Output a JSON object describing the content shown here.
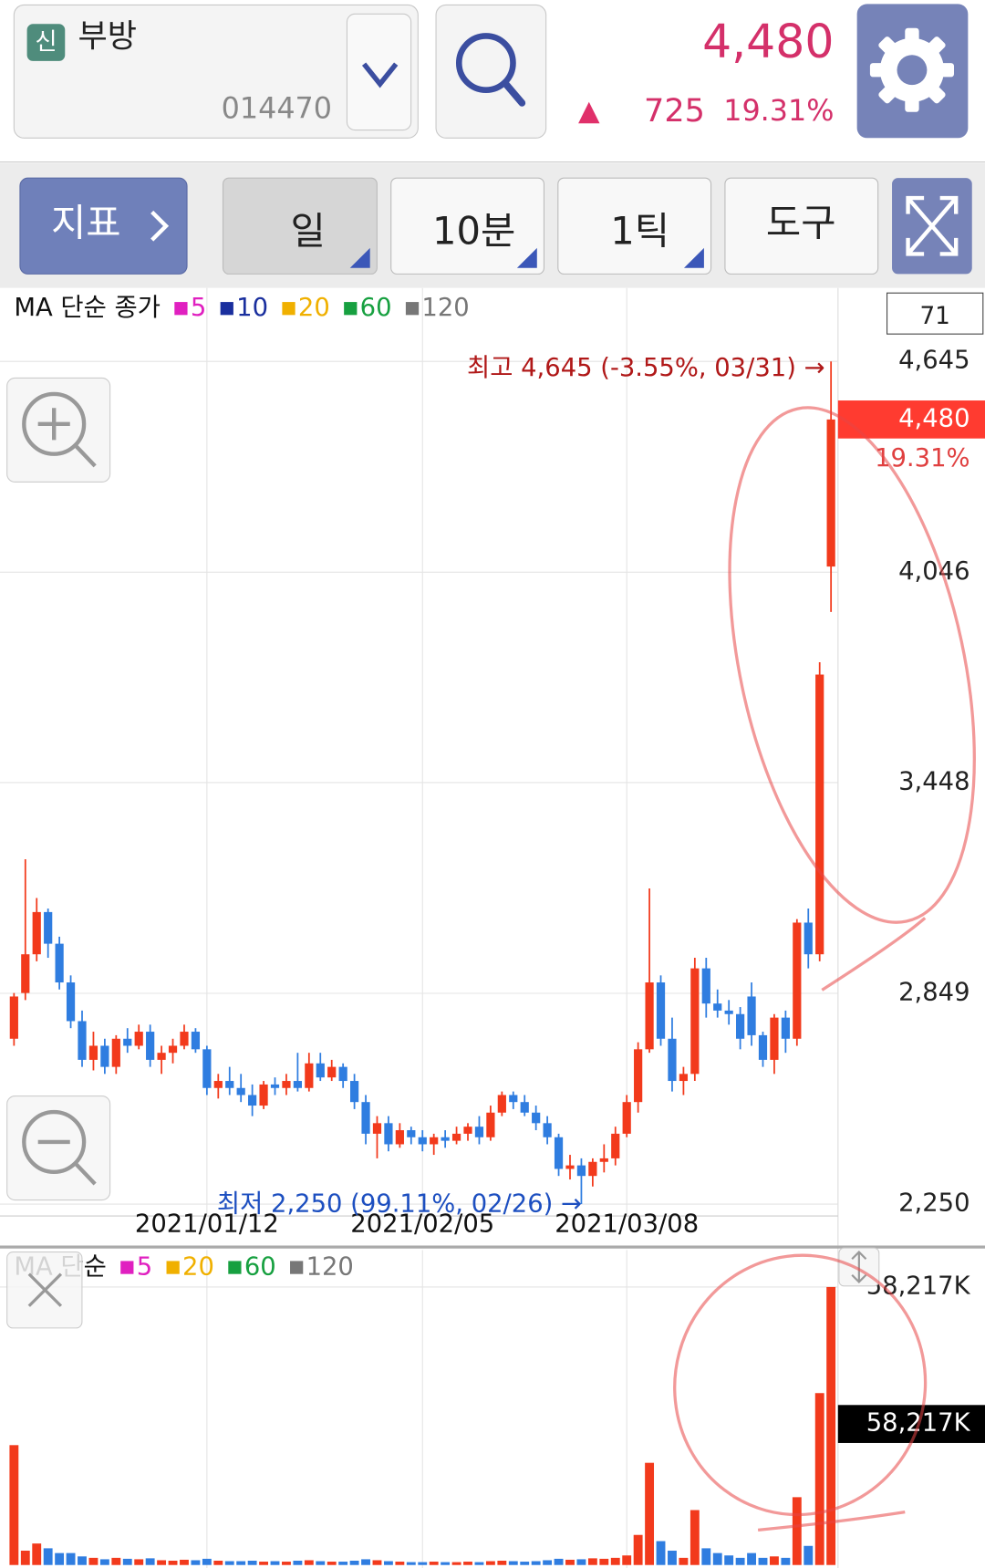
{
  "header": {
    "badge": "신",
    "name": "부방",
    "code": "014470",
    "price": "4,480",
    "arrow": "▲",
    "change": "725",
    "change_rate": "19.31%"
  },
  "toolbar": {
    "indicator": "지표",
    "period_day": "일",
    "period_min": "10분",
    "period_tick": "1틱",
    "tools": "도구"
  },
  "chart_data": [
    {
      "type": "candlestick",
      "count_label": "71",
      "ma_label": "MA 단순 종가",
      "ma_series": [
        {
          "name": "5",
          "color": "#e020c0"
        },
        {
          "name": "10",
          "color": "#1a2f9e"
        },
        {
          "name": "20",
          "color": "#f0b000"
        },
        {
          "name": "60",
          "color": "#17a040"
        },
        {
          "name": "120",
          "color": "#777777"
        }
      ],
      "categories": [
        null,
        null,
        null,
        null,
        null,
        null,
        null,
        null,
        null,
        null,
        null,
        null,
        null,
        null,
        null,
        null,
        null,
        "2021/01/12",
        null,
        null,
        null,
        null,
        null,
        null,
        null,
        null,
        null,
        null,
        null,
        null,
        null,
        null,
        null,
        null,
        null,
        null,
        "2021/02/05",
        null,
        null,
        null,
        null,
        null,
        null,
        null,
        null,
        null,
        null,
        null,
        null,
        null,
        null,
        null,
        null,
        null,
        "2021/03/08",
        null,
        null,
        null,
        null,
        null,
        null,
        null,
        null,
        null,
        null,
        null,
        null,
        null,
        null,
        null,
        null,
        null,
        null
      ],
      "open": [
        2720,
        2850,
        2960,
        3080,
        2990,
        2880,
        2770,
        2660,
        2700,
        2640,
        2720,
        2700,
        2740,
        2660,
        2680,
        2700,
        2740,
        2690,
        2580,
        2600,
        2580,
        2560,
        2530,
        2590,
        2580,
        2600,
        2580,
        2650,
        2610,
        2640,
        2600,
        2540,
        2450,
        2480,
        2420,
        2460,
        2440,
        2420,
        2440,
        2430,
        2450,
        2470,
        2440,
        2510,
        2560,
        2540,
        2510,
        2480,
        2440,
        2350,
        2360,
        2330,
        2370,
        2380,
        2450,
        2540,
        2690,
        2880,
        2720,
        2600,
        2620,
        2920,
        2820,
        2800,
        2790,
        2840,
        2730,
        2660,
        2780,
        2720,
        3050,
        2960,
        4062
      ],
      "high": [
        2850,
        3230,
        3120,
        3090,
        3010,
        2900,
        2800,
        2740,
        2720,
        2730,
        2750,
        2760,
        2760,
        2700,
        2720,
        2760,
        2750,
        2700,
        2620,
        2640,
        2620,
        2590,
        2600,
        2610,
        2620,
        2680,
        2680,
        2680,
        2660,
        2650,
        2620,
        2560,
        2500,
        2500,
        2480,
        2470,
        2460,
        2450,
        2460,
        2470,
        2480,
        2500,
        2530,
        2570,
        2570,
        2560,
        2530,
        2500,
        2450,
        2390,
        2380,
        2380,
        2420,
        2470,
        2560,
        2710,
        3147,
        2900,
        2780,
        2640,
        2950,
        2950,
        2860,
        2830,
        2810,
        2880,
        2740,
        2790,
        2800,
        3060,
        3090,
        3790,
        4645
      ],
      "low": [
        2700,
        2830,
        2940,
        2950,
        2860,
        2750,
        2640,
        2630,
        2620,
        2620,
        2680,
        2690,
        2640,
        2620,
        2650,
        2690,
        2680,
        2560,
        2550,
        2560,
        2540,
        2500,
        2520,
        2560,
        2560,
        2570,
        2570,
        2600,
        2600,
        2580,
        2520,
        2420,
        2380,
        2400,
        2410,
        2420,
        2400,
        2390,
        2410,
        2420,
        2430,
        2420,
        2430,
        2500,
        2520,
        2500,
        2460,
        2420,
        2330,
        2320,
        2250,
        2300,
        2340,
        2360,
        2440,
        2510,
        2680,
        2700,
        2570,
        2560,
        2600,
        2780,
        2780,
        2760,
        2690,
        2700,
        2640,
        2620,
        2680,
        2700,
        2920,
        2940,
        3933
      ],
      "close": [
        2840,
        2960,
        3080,
        2990,
        2880,
        2770,
        2660,
        2700,
        2640,
        2720,
        2700,
        2740,
        2660,
        2680,
        2700,
        2740,
        2690,
        2580,
        2600,
        2580,
        2560,
        2530,
        2590,
        2580,
        2600,
        2580,
        2650,
        2610,
        2640,
        2600,
        2540,
        2450,
        2480,
        2420,
        2460,
        2440,
        2420,
        2440,
        2430,
        2450,
        2470,
        2440,
        2510,
        2560,
        2540,
        2510,
        2480,
        2440,
        2350,
        2360,
        2330,
        2370,
        2380,
        2450,
        2540,
        2690,
        2880,
        2720,
        2600,
        2620,
        2920,
        2820,
        2800,
        2790,
        2720,
        2730,
        2660,
        2780,
        2720,
        3050,
        2960,
        3755,
        4480
      ],
      "up_color": "#f23a1c",
      "down_color": "#2f7de0",
      "ylim": [
        2219,
        4848
      ],
      "yticks": [
        {
          "value": 2250,
          "label": "2,250"
        },
        {
          "value": 2849,
          "label": "2,849"
        },
        {
          "value": 3448,
          "label": "3,448"
        },
        {
          "value": 4046,
          "label": "4,046"
        },
        {
          "value": 4645,
          "label": "4,645"
        }
      ],
      "grid": true,
      "high_annotation": "최고 4,645 (-3.55%, 03/31) →",
      "low_annotation": "최저 2,250 (99.11%, 02/26) →",
      "last_price": {
        "value": 4480,
        "label": "4,480"
      },
      "last_change": "19.31%"
    },
    {
      "type": "bar",
      "ma_label": "MA 단순",
      "ma_series": [
        {
          "name": "5",
          "color": "#e020c0"
        },
        {
          "name": "20",
          "color": "#f0b000"
        },
        {
          "name": "60",
          "color": "#17a040"
        },
        {
          "name": "120",
          "color": "#777777"
        }
      ],
      "values": [
        25100,
        3000,
        4500,
        3500,
        2500,
        2500,
        1800,
        1500,
        1200,
        1500,
        1300,
        1200,
        1400,
        1000,
        900,
        1100,
        1000,
        1300,
        900,
        800,
        800,
        900,
        700,
        800,
        700,
        900,
        1000,
        800,
        700,
        700,
        900,
        1200,
        1000,
        800,
        700,
        600,
        600,
        700,
        600,
        600,
        700,
        600,
        800,
        900,
        800,
        700,
        800,
        1000,
        1300,
        1100,
        1200,
        1400,
        1300,
        1500,
        2000,
        6300,
        21400,
        5000,
        3000,
        1500,
        11500,
        3500,
        2500,
        2000,
        1500,
        2500,
        1500,
        1800,
        1500,
        14200,
        4000,
        36000,
        58217
      ],
      "ylim": [
        0,
        65966
      ],
      "yticks": [
        {
          "value": 58217,
          "label": "58,217K"
        }
      ],
      "current_label": {
        "value": 58217,
        "label": "58,217K"
      }
    }
  ]
}
